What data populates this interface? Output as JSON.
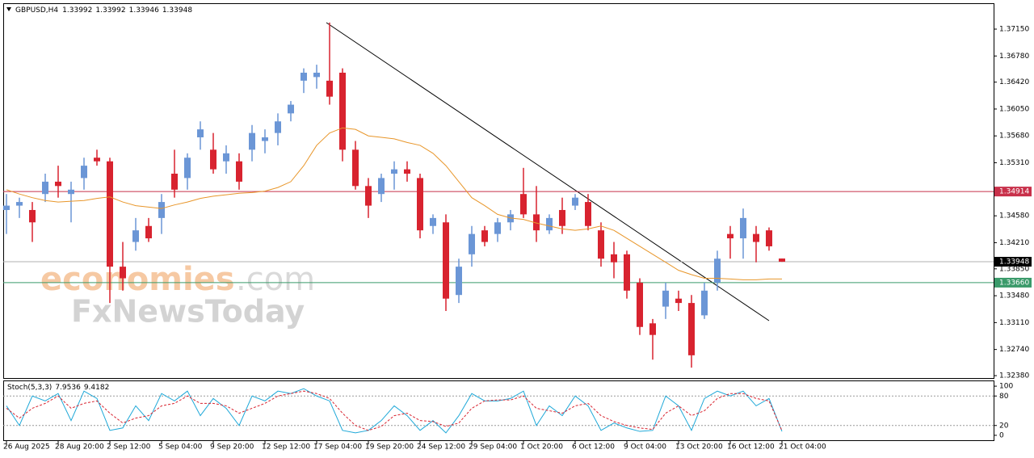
{
  "chart_data": {
    "type": "candlestick",
    "title": "GBPUSD,H4",
    "categories": [
      "26 Aug 2025",
      null,
      null,
      null,
      "28 Aug 20:00",
      null,
      null,
      null,
      "2 Sep 12:00",
      null,
      null,
      null,
      "5 Sep 04:00",
      null,
      null,
      null,
      "9 Sep 20:00",
      null,
      null,
      null,
      "12 Sep 12:00",
      null,
      null,
      null,
      "17 Sep 04:00",
      null,
      null,
      null,
      "19 Sep 20:00",
      null,
      null,
      null,
      "24 Sep 12:00",
      null,
      null,
      null,
      "29 Sep 04:00",
      null,
      null,
      null,
      "1 Oct 20:00",
      null,
      null,
      null,
      "6 Oct 12:00",
      null,
      null,
      null,
      "9 Oct 04:00",
      null,
      null,
      null,
      "13 Oct 20:00",
      null,
      null,
      null,
      "16 Oct 12:00",
      null,
      null,
      null,
      "21 Oct 04:00"
    ],
    "open": [
      1.3466,
      1.3472,
      1.3466,
      1.3488,
      1.3505,
      1.3488,
      1.351,
      1.3538,
      1.3533,
      1.3388,
      1.3422,
      1.3444,
      1.3455,
      1.3516,
      1.351,
      1.3566,
      1.3549,
      1.3533,
      1.3533,
      1.3549,
      1.3561,
      1.3572,
      1.3599,
      1.3644,
      1.3649,
      1.3644,
      1.3655,
      1.3549,
      1.3499,
      1.3488,
      1.3516,
      1.3522,
      1.351,
      1.3444,
      1.3449,
      1.3349,
      1.3405,
      1.3438,
      1.3433,
      1.3449,
      1.3488,
      1.346,
      1.3438,
      1.3466,
      1.3472,
      1.3477,
      1.3438,
      1.3405,
      1.3405,
      1.3366,
      1.331,
      1.3333,
      1.3344,
      1.3338,
      1.3321,
      1.3366,
      1.3433,
      1.3427,
      1.3433,
      1.3438,
      1.33992
    ],
    "high": [
      1.3488,
      1.3483,
      1.3477,
      1.3516,
      1.3527,
      1.3505,
      1.3538,
      1.3549,
      1.3538,
      1.3422,
      1.3455,
      1.3455,
      1.3488,
      1.3549,
      1.3544,
      1.3588,
      1.3572,
      1.3555,
      1.3544,
      1.3583,
      1.3577,
      1.3599,
      1.3616,
      1.3661,
      1.3666,
      1.3724,
      1.3661,
      1.3561,
      1.351,
      1.3516,
      1.3533,
      1.3533,
      1.3516,
      1.346,
      1.346,
      1.3399,
      1.3444,
      1.3444,
      1.3455,
      1.3466,
      1.3524,
      1.3499,
      1.346,
      1.3483,
      1.3488,
      1.3488,
      1.3449,
      1.3422,
      1.341,
      1.3372,
      1.3316,
      1.3366,
      1.3355,
      1.3349,
      1.3366,
      1.341,
      1.3444,
      1.3468,
      1.3444,
      1.3442,
      1.33992
    ],
    "low": [
      1.3433,
      1.3455,
      1.3422,
      1.3477,
      1.3483,
      1.3449,
      1.3494,
      1.3527,
      1.3338,
      1.3355,
      1.341,
      1.3422,
      1.3433,
      1.3483,
      1.3494,
      1.3549,
      1.3516,
      1.3516,
      1.3494,
      1.3533,
      1.3544,
      1.3555,
      1.3588,
      1.3627,
      1.3633,
      1.3611,
      1.3533,
      1.3494,
      1.3455,
      1.3477,
      1.3494,
      1.3505,
      1.3427,
      1.3433,
      1.3327,
      1.3338,
      1.3388,
      1.3416,
      1.3422,
      1.3438,
      1.3455,
      1.3422,
      1.3433,
      1.3433,
      1.3466,
      1.3438,
      1.3388,
      1.3372,
      1.3344,
      1.3294,
      1.326,
      1.3316,
      1.3327,
      1.3249,
      1.3316,
      1.3355,
      1.3399,
      1.3399,
      1.3394,
      1.341,
      1.33946
    ],
    "close": [
      1.3472,
      1.3477,
      1.3449,
      1.3505,
      1.3499,
      1.3494,
      1.3527,
      1.3533,
      1.3388,
      1.3372,
      1.3438,
      1.3427,
      1.3477,
      1.3494,
      1.3538,
      1.3577,
      1.3522,
      1.3544,
      1.3505,
      1.3572,
      1.3566,
      1.3588,
      1.3611,
      1.3655,
      1.3655,
      1.3622,
      1.3549,
      1.3499,
      1.3472,
      1.351,
      1.3522,
      1.3516,
      1.3438,
      1.3455,
      1.3344,
      1.3388,
      1.3433,
      1.3422,
      1.3449,
      1.346,
      1.346,
      1.3438,
      1.3455,
      1.3444,
      1.3483,
      1.3444,
      1.3399,
      1.3394,
      1.3355,
      1.3305,
      1.3294,
      1.3355,
      1.3338,
      1.3266,
      1.3355,
      1.3399,
      1.3427,
      1.3455,
      1.3422,
      1.3416,
      1.33948
    ],
    "up_color": "#6b96d6",
    "down_color": "#d8232f",
    "ylim": [
      1.32347,
      1.37495
    ],
    "yticks": [
      {
        "value": 1.3715,
        "label": "1.37150"
      },
      {
        "value": 1.3678,
        "label": "1.36780"
      },
      {
        "value": 1.3642,
        "label": "1.36420"
      },
      {
        "value": 1.3605,
        "label": "1.36050"
      },
      {
        "value": 1.3568,
        "label": "1.35680"
      },
      {
        "value": 1.3531,
        "label": "1.35310"
      },
      {
        "value": 1.3458,
        "label": "1.34580"
      },
      {
        "value": 1.3421,
        "label": "1.34210"
      },
      {
        "value": 1.3385,
        "label": "1.33850"
      },
      {
        "value": 1.3348,
        "label": "1.33480"
      },
      {
        "value": 1.3311,
        "label": "1.33110"
      },
      {
        "value": 1.3274,
        "label": "1.32740"
      },
      {
        "value": 1.3238,
        "label": "1.32380"
      }
    ],
    "ma": {
      "color": "#e8962a",
      "values": [
        1.3494,
        1.3488,
        1.3483,
        1.3479,
        1.3477,
        1.3478,
        1.3479,
        1.3482,
        1.3484,
        1.3477,
        1.3472,
        1.347,
        1.3468,
        1.3473,
        1.3477,
        1.3482,
        1.3485,
        1.3487,
        1.3489,
        1.349,
        1.3492,
        1.3497,
        1.3505,
        1.3527,
        1.3555,
        1.3572,
        1.3579,
        1.3577,
        1.3568,
        1.3566,
        1.3564,
        1.3559,
        1.3555,
        1.3544,
        1.3527,
        1.3505,
        1.3483,
        1.3472,
        1.346,
        1.3455,
        1.3453,
        1.3448,
        1.3444,
        1.344,
        1.3438,
        1.344,
        1.3444,
        1.3438,
        1.3427,
        1.3416,
        1.3405,
        1.3394,
        1.3383,
        1.3377,
        1.3372,
        1.3372,
        1.3371,
        1.337,
        1.337,
        1.3371,
        1.3371
      ]
    },
    "levels": [
      {
        "value": 1.34914,
        "color": "#c8304a"
      },
      {
        "value": 1.3366,
        "label": "1.33660",
        "color": "#3a9a6a"
      }
    ],
    "current_color": "#b0b0b0",
    "watermark": [
      "economies",
      ".com",
      "FxNewsToday"
    ],
    "stochastic": {
      "type": "line",
      "label": "Stoch(5,3,3)",
      "ylim": [
        -10,
        110
      ],
      "yticks": [
        100,
        80,
        20,
        0
      ],
      "series": [
        {
          "color": "#1ea8d8",
          "values": [
            60,
            20,
            80,
            70,
            85,
            30,
            90,
            75,
            10,
            15,
            60,
            30,
            85,
            70,
            90,
            40,
            75,
            55,
            20,
            80,
            70,
            90,
            85,
            95,
            80,
            70,
            10,
            5,
            10,
            30,
            60,
            40,
            10,
            30,
            5,
            40,
            85,
            70,
            70,
            75,
            90,
            20,
            60,
            40,
            80,
            60,
            10,
            25,
            15,
            8,
            10,
            80,
            60,
            10,
            75,
            90,
            80,
            90,
            60,
            75,
            7.9536
          ]
        },
        {
          "color": "#d8232f",
          "dash": true,
          "values": [
            55,
            35,
            55,
            65,
            80,
            55,
            65,
            70,
            45,
            25,
            35,
            40,
            60,
            65,
            80,
            65,
            65,
            60,
            45,
            55,
            65,
            80,
            85,
            90,
            85,
            75,
            45,
            20,
            10,
            18,
            40,
            45,
            30,
            28,
            18,
            25,
            55,
            70,
            72,
            72,
            80,
            55,
            50,
            45,
            60,
            65,
            40,
            28,
            20,
            15,
            12,
            45,
            60,
            40,
            50,
            75,
            85,
            85,
            75,
            70,
            9.4182
          ]
        }
      ]
    }
  }
}
